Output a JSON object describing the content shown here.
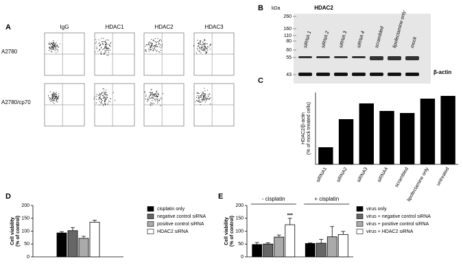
{
  "panel_a": {
    "label": "A",
    "columns": [
      "IgG",
      "HDAC1",
      "HDAC2",
      "HDAC3"
    ],
    "rows": [
      "A2780",
      "A2780/cp70"
    ]
  },
  "panel_b": {
    "label": "B",
    "unit": "kDa",
    "title": "HDAC2",
    "markers": [
      260,
      160,
      110,
      80,
      60,
      55,
      43
    ],
    "lanes": [
      "siRNA 1",
      "siRNA 2",
      "siRNA 3",
      "siRNA 4",
      "scrambled",
      "lipofectamine only",
      "mock"
    ],
    "loading": "β-actin"
  },
  "chart_data": [
    {
      "type": "bar",
      "label": "C",
      "ylabel": [
        "HDAC2/β-actin",
        "(% of mock treated cells)"
      ],
      "categories": [
        "siRNA1",
        "siRNA2",
        "siRNA3",
        "siRNA4",
        "scrambled",
        "lipofectamine only",
        "untreated"
      ],
      "values": [
        25,
        66,
        89,
        78,
        75,
        96,
        100
      ],
      "color": "#000000",
      "ylim": [
        0,
        105
      ]
    },
    {
      "type": "grouped_bar",
      "label": "D",
      "ylabel": [
        "Cell viability",
        "(% of control)"
      ],
      "categories": [
        null
      ],
      "ylim": [
        0,
        200
      ],
      "yticks": [
        0,
        50,
        100,
        150,
        200
      ],
      "series": [
        {
          "name": "cisplatin only",
          "color": "#000000",
          "values": [
            93
          ],
          "errors": [
            5
          ]
        },
        {
          "name": "negative control siRNA",
          "color": "#666666",
          "values": [
            102
          ],
          "errors": [
            12
          ]
        },
        {
          "name": "positive control siRNA",
          "color": "#aaaaaa",
          "values": [
            72
          ],
          "errors": [
            8
          ]
        },
        {
          "name": "HDAC2 siRNA",
          "color": "#ffffff",
          "values": [
            135
          ],
          "errors": [
            8
          ]
        }
      ]
    },
    {
      "type": "grouped_bar",
      "label": "E",
      "ylabel": [
        "Cell viability",
        "(% of control)"
      ],
      "categories": [
        null,
        null
      ],
      "group_labels": [
        "- cisplatin",
        "+ cisplatin"
      ],
      "significance": "***",
      "ylim": [
        0,
        200
      ],
      "yticks": [
        0,
        50,
        100,
        150,
        200
      ],
      "series": [
        {
          "name": "virus only",
          "color": "#000000",
          "values": [
            48,
            52
          ],
          "errors": [
            8,
            2
          ]
        },
        {
          "name": "virus + negative control siRNA",
          "color": "#666666",
          "values": [
            50,
            53
          ],
          "errors": [
            5,
            15
          ]
        },
        {
          "name": "virus + positive control siRNA",
          "color": "#aaaaaa",
          "values": [
            77,
            78
          ],
          "errors": [
            8,
            40
          ]
        },
        {
          "name": "virus + HDAC2 siRNA",
          "color": "#ffffff",
          "values": [
            125,
            87
          ],
          "errors": [
            25,
            12
          ]
        }
      ]
    }
  ]
}
